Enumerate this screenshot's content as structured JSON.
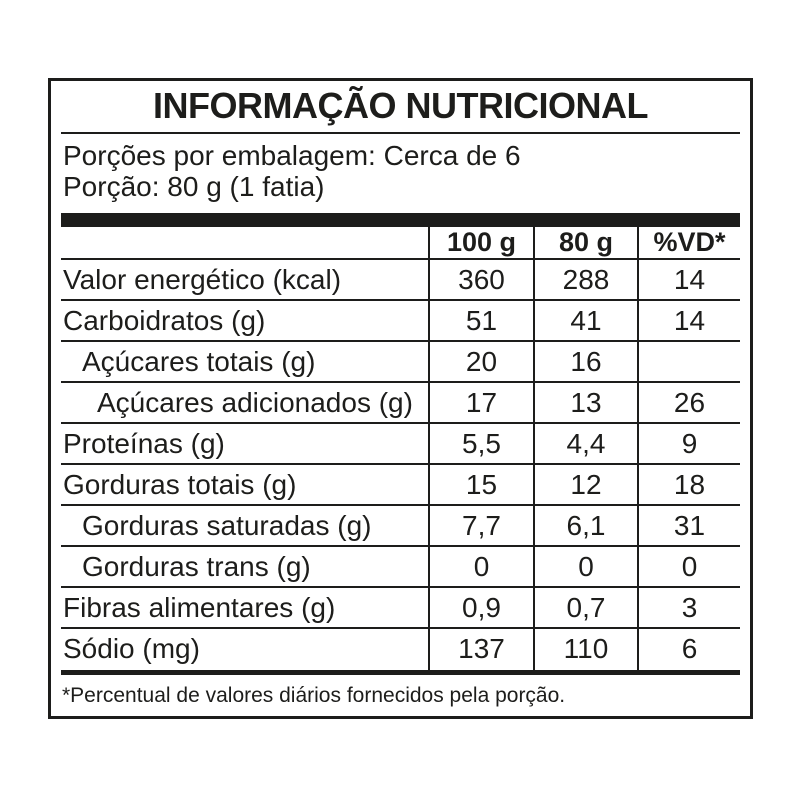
{
  "label": {
    "title": "INFORMAÇÃO NUTRICIONAL",
    "servings_per_package": "Porções por embalagem: Cerca de 6",
    "serving_size": "Porção: 80 g (1 fatia)",
    "columns": [
      "100 g",
      "80 g",
      "%VD*"
    ],
    "rows": [
      {
        "name": "Valor energético (kcal)",
        "indent": 0,
        "values": [
          "360",
          "288",
          "14"
        ]
      },
      {
        "name": "Carboidratos (g)",
        "indent": 0,
        "values": [
          "51",
          "41",
          "14"
        ]
      },
      {
        "name": "Açúcares totais (g)",
        "indent": 1,
        "values": [
          "20",
          "16",
          ""
        ]
      },
      {
        "name": "Açúcares adicionados (g)",
        "indent": 2,
        "values": [
          "17",
          "13",
          "26"
        ]
      },
      {
        "name": "Proteínas (g)",
        "indent": 0,
        "values": [
          "5,5",
          "4,4",
          "9"
        ]
      },
      {
        "name": "Gorduras totais (g)",
        "indent": 0,
        "values": [
          "15",
          "12",
          "18"
        ]
      },
      {
        "name": "Gorduras saturadas (g)",
        "indent": 1,
        "values": [
          "7,7",
          "6,1",
          "31"
        ]
      },
      {
        "name": "Gorduras trans (g)",
        "indent": 1,
        "values": [
          "0",
          "0",
          "0"
        ]
      },
      {
        "name": "Fibras alimentares (g)",
        "indent": 0,
        "values": [
          "0,9",
          "0,7",
          "3"
        ]
      },
      {
        "name": "Sódio (mg)",
        "indent": 0,
        "values": [
          "137",
          "110",
          "6"
        ]
      }
    ],
    "footnote": "*Percentual de valores diários fornecidos pela porção.",
    "colors": {
      "line": "#1d1d1b",
      "text": "#1d1d1b",
      "background": "#ffffff"
    }
  }
}
